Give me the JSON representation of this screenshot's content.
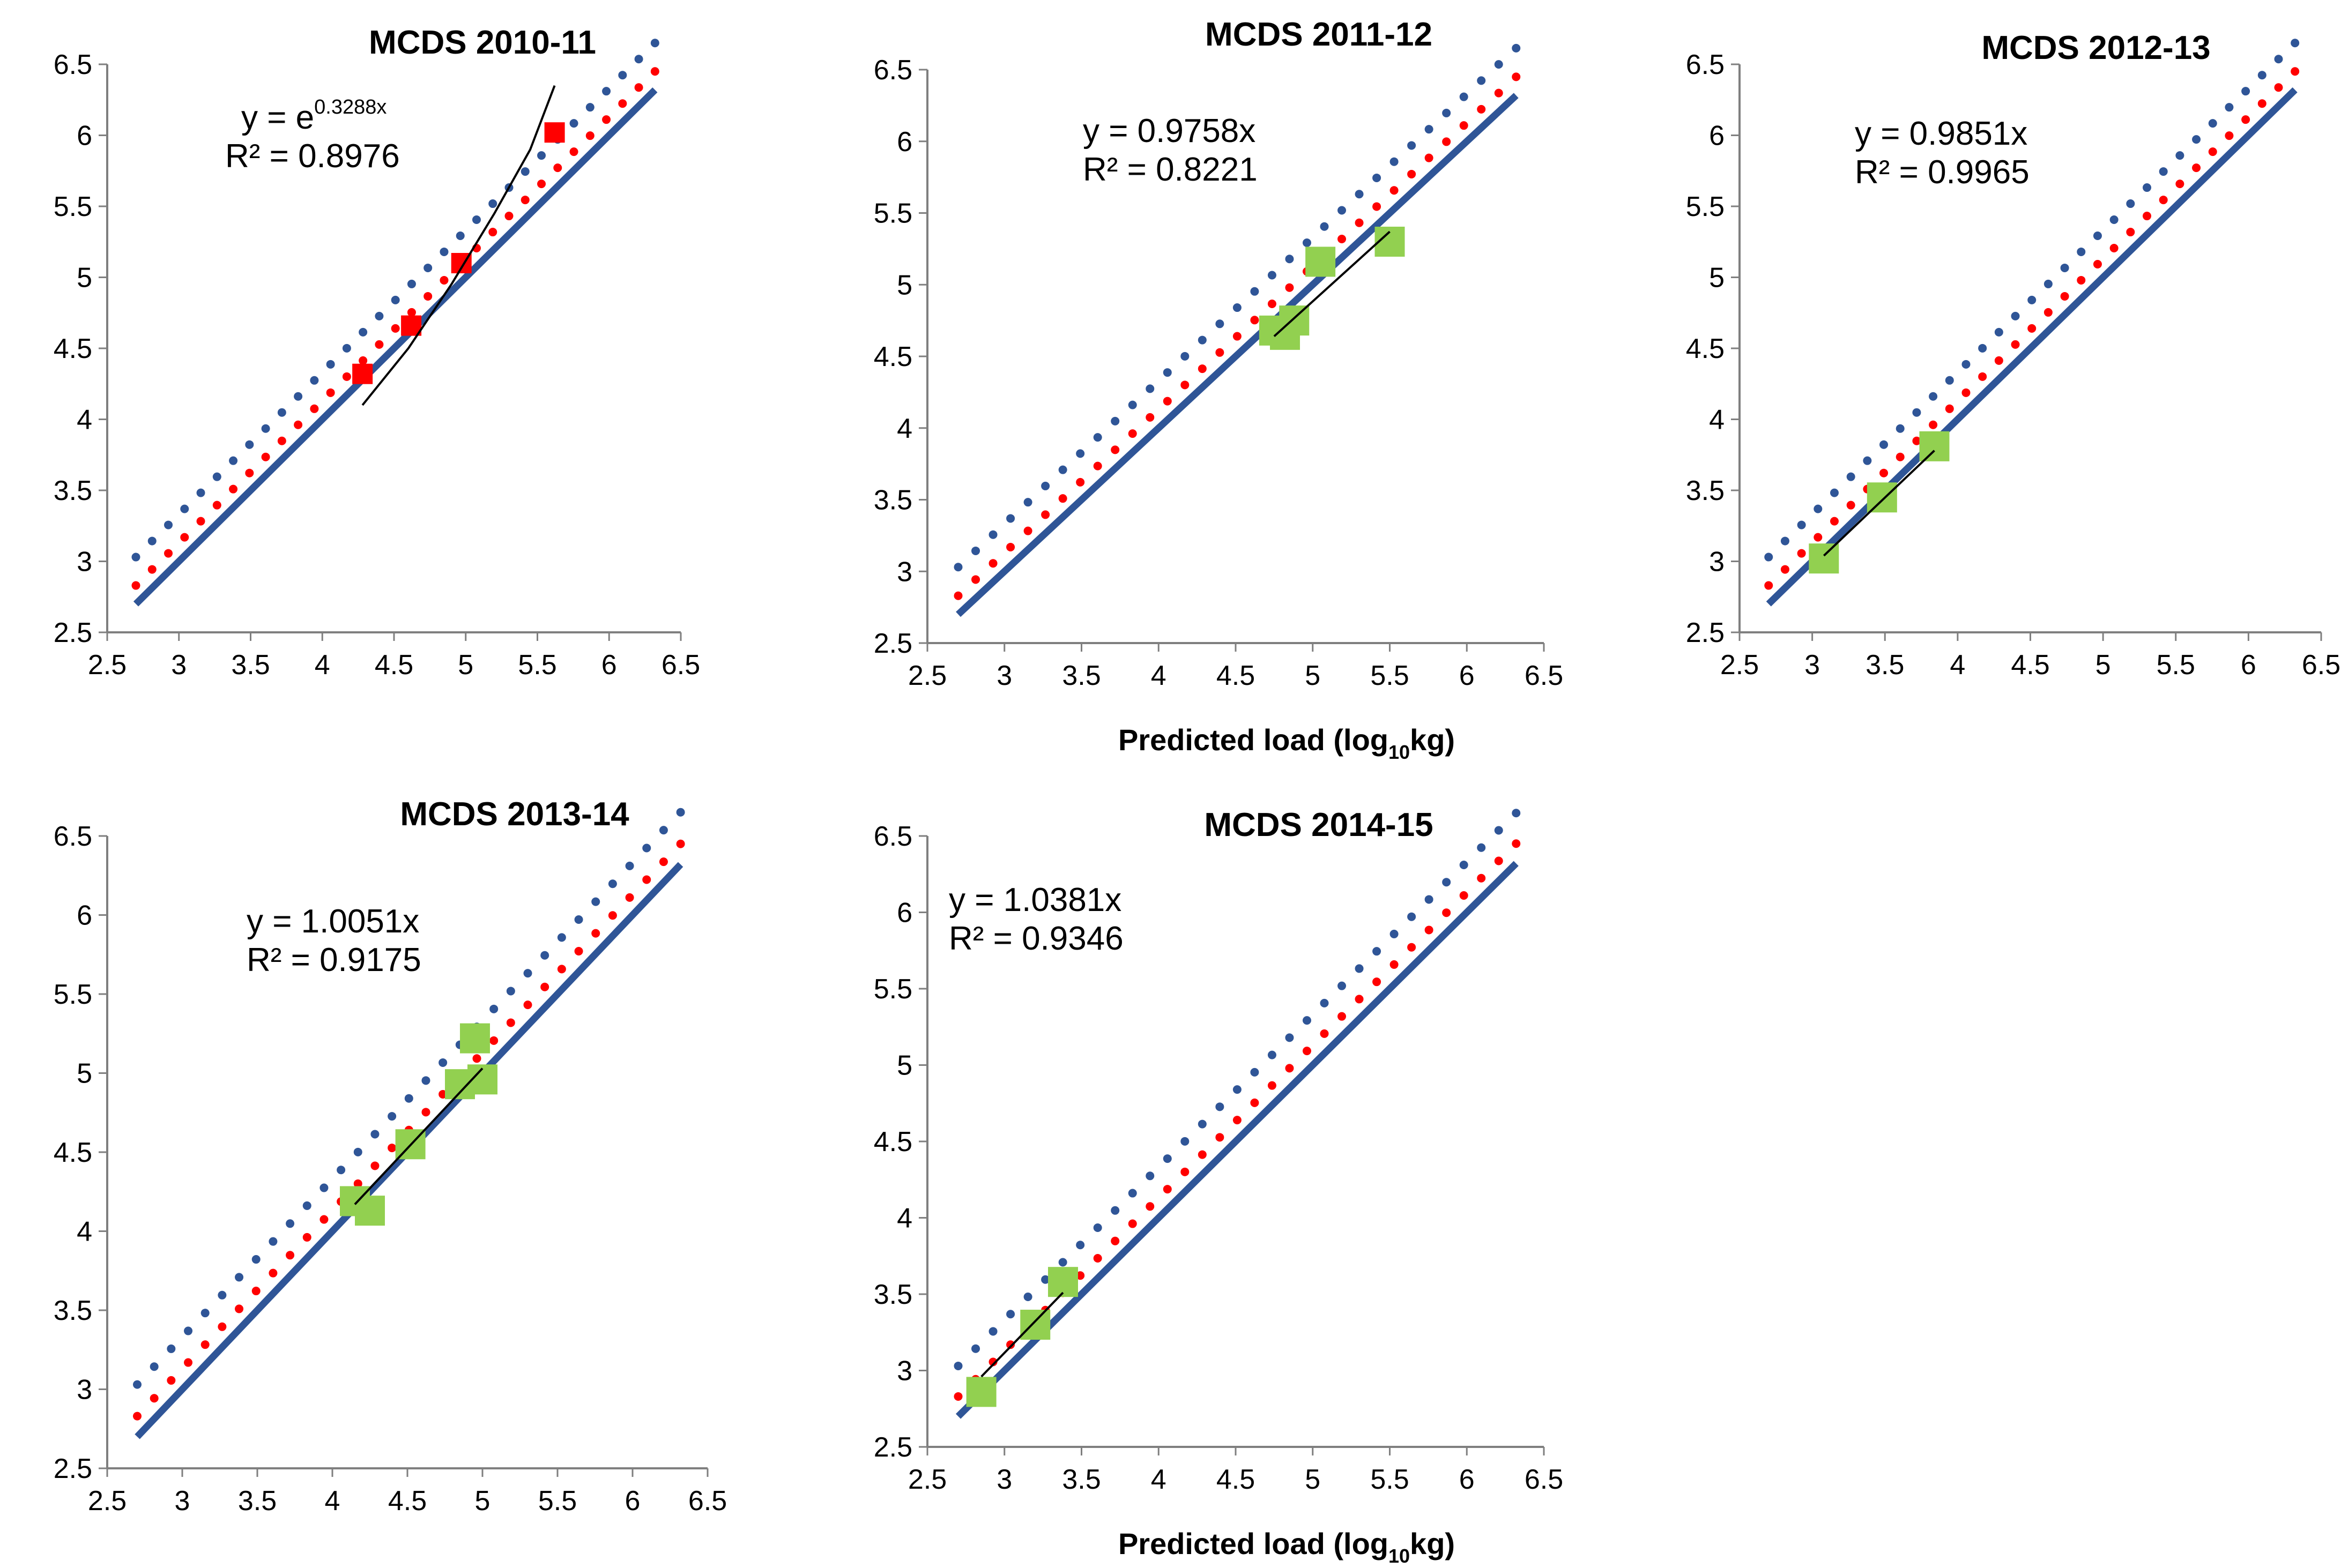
{
  "chart_data": [
    {
      "type": "scatter",
      "title": "MCDS 2010-11",
      "xlabel": "",
      "xlim": [
        2.5,
        6.5
      ],
      "ylim": [
        2.5,
        6.5
      ],
      "xticks": [
        "2.5",
        "3",
        "3.5",
        "4",
        "4.5",
        "5",
        "5.5",
        "6",
        "6.5"
      ],
      "yticks": [
        "2.5",
        "3",
        "3.5",
        "4",
        "4.5",
        "5",
        "5.5",
        "6",
        "6.5"
      ],
      "equation": {
        "base": "y = e",
        "exponent": "0.3288x",
        "r2": "R² = 0.8976"
      },
      "marker_color": "#ff0000",
      "points": [
        {
          "x": 4.28,
          "y": 4.32
        },
        {
          "x": 4.62,
          "y": 4.66
        },
        {
          "x": 4.97,
          "y": 5.1
        },
        {
          "x": 5.62,
          "y": 6.02
        }
      ],
      "trendline": [
        [
          4.28,
          4.1
        ],
        [
          4.6,
          4.5
        ],
        [
          4.9,
          4.95
        ],
        [
          5.2,
          5.45
        ],
        [
          5.45,
          5.9
        ],
        [
          5.62,
          6.35
        ]
      ]
    },
    {
      "type": "scatter",
      "title": "MCDS 2011-12",
      "xlabel": "Predicted load (log",
      "xlabel_sub": "10",
      "xlabel_tail": "kg)",
      "xlim": [
        2.5,
        6.5
      ],
      "ylim": [
        2.5,
        6.5
      ],
      "xticks": [
        "2.5",
        "3",
        "3.5",
        "4",
        "4.5",
        "5",
        "5.5",
        "6",
        "6.5"
      ],
      "yticks": [
        "2.5",
        "3",
        "3.5",
        "4",
        "4.5",
        "5",
        "5.5",
        "6",
        "6.5"
      ],
      "equation": {
        "base": "y = 0.9758x",
        "exponent": "",
        "r2": "R² = 0.8221"
      },
      "marker_color": "#92d050",
      "points": [
        {
          "x": 4.75,
          "y": 4.68
        },
        {
          "x": 4.82,
          "y": 4.65
        },
        {
          "x": 4.88,
          "y": 4.75
        },
        {
          "x": 5.05,
          "y": 5.16
        },
        {
          "x": 5.5,
          "y": 5.3
        }
      ],
      "trendline": [
        [
          4.75,
          4.64
        ],
        [
          5.5,
          5.37
        ]
      ]
    },
    {
      "type": "scatter",
      "title": "MCDS 2012-13",
      "xlabel": "",
      "xlim": [
        2.5,
        6.5
      ],
      "ylim": [
        2.5,
        6.5
      ],
      "xticks": [
        "2.5",
        "3",
        "3.5",
        "4",
        "4.5",
        "5",
        "5.5",
        "6",
        "6.5"
      ],
      "yticks": [
        "2.5",
        "3",
        "3.5",
        "4",
        "4.5",
        "5",
        "5.5",
        "6",
        "6.5"
      ],
      "equation": {
        "base": "y = 0.9851x",
        "exponent": "",
        "r2": "R² = 0.9965"
      },
      "marker_color": "#92d050",
      "points": [
        {
          "x": 3.08,
          "y": 3.02
        },
        {
          "x": 3.48,
          "y": 3.45
        },
        {
          "x": 3.84,
          "y": 3.81
        }
      ],
      "trendline": [
        [
          3.08,
          3.04
        ],
        [
          3.84,
          3.78
        ]
      ]
    },
    {
      "type": "scatter",
      "title": "MCDS 2013-14",
      "xlabel": "",
      "xlim": [
        2.5,
        6.5
      ],
      "ylim": [
        2.5,
        6.5
      ],
      "xticks": [
        "2.5",
        "3",
        "3.5",
        "4",
        "4.5",
        "5",
        "5.5",
        "6",
        "6.5"
      ],
      "yticks": [
        "2.5",
        "3",
        "3.5",
        "4",
        "4.5",
        "5",
        "5.5",
        "6",
        "6.5"
      ],
      "equation": {
        "base": "y = 1.0051x",
        "exponent": "",
        "r2": "R² = 0.9175"
      },
      "marker_color": "#92d050",
      "points": [
        {
          "x": 4.15,
          "y": 4.19
        },
        {
          "x": 4.25,
          "y": 4.13
        },
        {
          "x": 4.52,
          "y": 4.55
        },
        {
          "x": 4.85,
          "y": 4.93
        },
        {
          "x": 4.95,
          "y": 5.22
        },
        {
          "x": 5.0,
          "y": 4.96
        }
      ],
      "trendline": [
        [
          4.15,
          4.17
        ],
        [
          5.0,
          5.03
        ]
      ]
    },
    {
      "type": "scatter",
      "title": "MCDS 2014-15",
      "xlabel": "Predicted load (log",
      "xlabel_sub": "10",
      "xlabel_tail": "kg)",
      "xlim": [
        2.5,
        6.5
      ],
      "ylim": [
        2.5,
        6.5
      ],
      "xticks": [
        "2.5",
        "3",
        "3.5",
        "4",
        "4.5",
        "5",
        "5.5",
        "6",
        "6.5"
      ],
      "yticks": [
        "2.5",
        "3",
        "3.5",
        "4",
        "4.5",
        "5",
        "5.5",
        "6",
        "6.5"
      ],
      "equation": {
        "base": "y = 1.0381x",
        "exponent": "",
        "r2": "R² = 0.9346"
      },
      "marker_color": "#92d050",
      "points": [
        {
          "x": 2.85,
          "y": 2.86
        },
        {
          "x": 3.2,
          "y": 3.3
        },
        {
          "x": 3.38,
          "y": 3.58
        }
      ],
      "trendline": [
        [
          2.85,
          2.96
        ],
        [
          3.38,
          3.51
        ]
      ]
    }
  ],
  "reference_lines": {
    "one_to_one": {
      "color": "#2f5597",
      "from": 2.7,
      "to": 6.32
    },
    "red_dotted": {
      "color": "#ff0000",
      "offset": 0.13,
      "from": 2.7,
      "to": 6.32
    },
    "blue_dotted": {
      "color": "#2f5597",
      "offset": 0.33,
      "from": 2.7,
      "to": 6.32
    }
  }
}
